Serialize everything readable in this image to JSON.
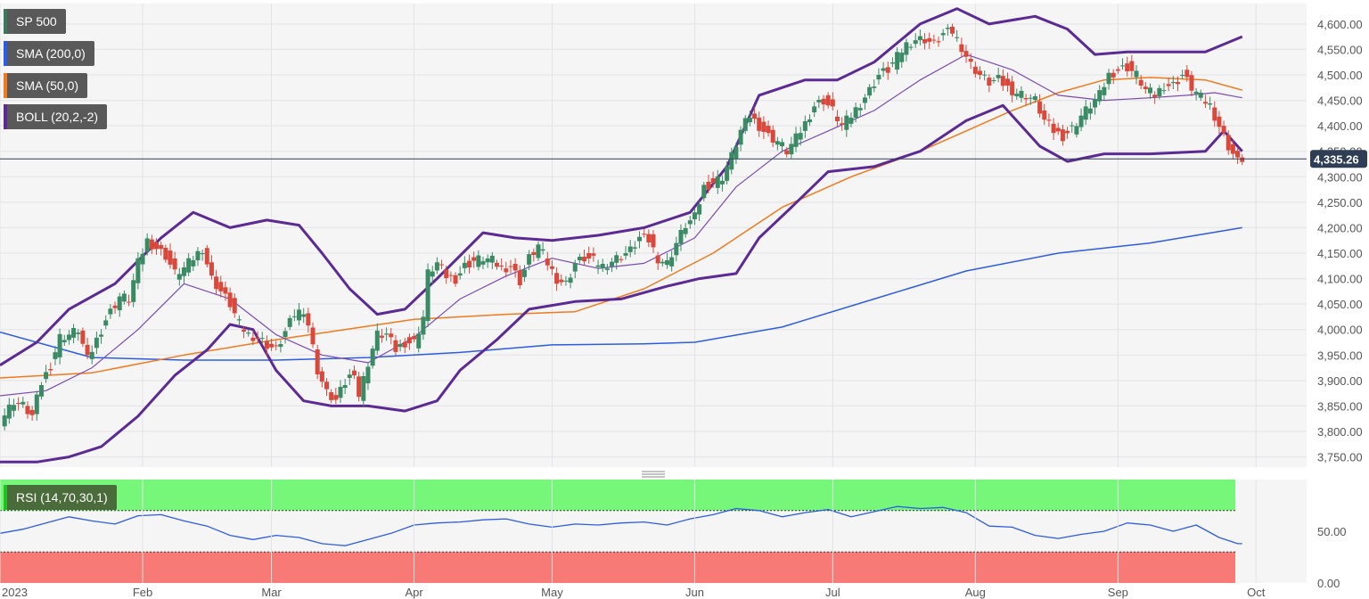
{
  "chart_data": [
    {
      "type": "candlestick",
      "symbol": "SP 500",
      "current_value_label": "4,335.26",
      "ylim": [
        3730,
        4640
      ],
      "y_ticks": [
        {
          "value": 3750,
          "label": "3,750.00"
        },
        {
          "value": 3800,
          "label": "3,800.00"
        },
        {
          "value": 3850,
          "label": "3,850.00"
        },
        {
          "value": 3900,
          "label": "3,900.00"
        },
        {
          "value": 3950,
          "label": "3,950.00"
        },
        {
          "value": 4000,
          "label": "4,000.00"
        },
        {
          "value": 4050,
          "label": "4,050.00"
        },
        {
          "value": 4100,
          "label": "4,100.00"
        },
        {
          "value": 4150,
          "label": "4,150.00"
        },
        {
          "value": 4200,
          "label": "4,200.00"
        },
        {
          "value": 4250,
          "label": "4,250.00"
        },
        {
          "value": 4300,
          "label": "4,300.00"
        },
        {
          "value": 4350,
          "label": "4,350.00"
        },
        {
          "value": 4400,
          "label": "4,400.00"
        },
        {
          "value": 4450,
          "label": "4,450.00"
        },
        {
          "value": 4500,
          "label": "4,500.00"
        },
        {
          "value": 4550,
          "label": "4,550.00"
        },
        {
          "value": 4600,
          "label": "4,600.00"
        }
      ],
      "x_ticks": [
        {
          "day": 0,
          "label": "2023"
        },
        {
          "day": 31,
          "label": "Feb"
        },
        {
          "day": 59,
          "label": "Mar"
        },
        {
          "day": 90,
          "label": "Apr"
        },
        {
          "day": 120,
          "label": "May"
        },
        {
          "day": 151,
          "label": "Jun"
        },
        {
          "day": 181,
          "label": "Jul"
        },
        {
          "day": 212,
          "label": "Aug"
        },
        {
          "day": 243,
          "label": "Sep"
        },
        {
          "day": 273,
          "label": "Oct"
        }
      ],
      "xlim_days": [
        0,
        284
      ],
      "indicators": [
        {
          "name": "SP 500",
          "color": "#3a7a5a"
        },
        {
          "name": "SMA (200,0)",
          "color": "#2b5ce6"
        },
        {
          "name": "SMA (50,0)",
          "color": "#f07a1c"
        },
        {
          "name": "BOLL (20,2,-2)",
          "color": "#5b2a94"
        }
      ],
      "up_color": "#3a8a64",
      "down_color": "#d9483b",
      "close_path": [
        [
          0,
          3820
        ],
        [
          3,
          3860
        ],
        [
          5,
          3850
        ],
        [
          7,
          3830
        ],
        [
          9,
          3895
        ],
        [
          11,
          3930
        ],
        [
          13,
          3985
        ],
        [
          15,
          3990
        ],
        [
          17,
          4000
        ],
        [
          19,
          3940
        ],
        [
          21,
          3980
        ],
        [
          23,
          4020
        ],
        [
          26,
          4065
        ],
        [
          28,
          4060
        ],
        [
          30,
          4130
        ],
        [
          32,
          4175
        ],
        [
          34,
          4160
        ],
        [
          36,
          4145
        ],
        [
          38,
          4110
        ],
        [
          40,
          4120
        ],
        [
          42,
          4140
        ],
        [
          44,
          4160
        ],
        [
          46,
          4100
        ],
        [
          48,
          4075
        ],
        [
          50,
          4050
        ],
        [
          52,
          4010
        ],
        [
          54,
          3990
        ],
        [
          56,
          3985
        ],
        [
          58,
          3970
        ],
        [
          60,
          3960
        ],
        [
          62,
          3995
        ],
        [
          64,
          4030
        ],
        [
          66,
          4040
        ],
        [
          67,
          4010
        ],
        [
          69,
          3920
        ],
        [
          71,
          3875
        ],
        [
          73,
          3860
        ],
        [
          75,
          3895
        ],
        [
          77,
          3920
        ],
        [
          78,
          3870
        ],
        [
          80,
          3935
        ],
        [
          82,
          3990
        ],
        [
          84,
          3990
        ],
        [
          86,
          3960
        ],
        [
          88,
          3975
        ],
        [
          90,
          3975
        ],
        [
          92,
          4025
        ],
        [
          93,
          4110
        ],
        [
          95,
          4130
        ],
        [
          97,
          4105
        ],
        [
          99,
          4100
        ],
        [
          101,
          4125
        ],
        [
          103,
          4135
        ],
        [
          105,
          4140
        ],
        [
          107,
          4135
        ],
        [
          109,
          4120
        ],
        [
          111,
          4125
        ],
        [
          113,
          4095
        ],
        [
          115,
          4140
        ],
        [
          117,
          4165
        ],
        [
          119,
          4130
        ],
        [
          121,
          4100
        ],
        [
          123,
          4090
        ],
        [
          125,
          4130
        ],
        [
          127,
          4140
        ],
        [
          129,
          4135
        ],
        [
          131,
          4125
        ],
        [
          133,
          4135
        ],
        [
          135,
          4145
        ],
        [
          137,
          4155
        ],
        [
          139,
          4180
        ],
        [
          141,
          4175
        ],
        [
          143,
          4140
        ],
        [
          145,
          4130
        ],
        [
          147,
          4170
        ],
        [
          149,
          4205
        ],
        [
          151,
          4220
        ],
        [
          153,
          4280
        ],
        [
          155,
          4290
        ],
        [
          157,
          4300
        ],
        [
          159,
          4340
        ],
        [
          161,
          4390
        ],
        [
          163,
          4420
        ],
        [
          165,
          4400
        ],
        [
          167,
          4380
        ],
        [
          169,
          4370
        ],
        [
          171,
          4350
        ],
        [
          173,
          4375
        ],
        [
          175,
          4405
        ],
        [
          177,
          4440
        ],
        [
          179,
          4450
        ],
        [
          181,
          4430
        ],
        [
          183,
          4400
        ],
        [
          185,
          4420
        ],
        [
          187,
          4445
        ],
        [
          189,
          4470
        ],
        [
          191,
          4500
        ],
        [
          193,
          4510
        ],
        [
          195,
          4535
        ],
        [
          197,
          4560
        ],
        [
          199,
          4570
        ],
        [
          201,
          4570
        ],
        [
          203,
          4560
        ],
        [
          205,
          4580
        ],
        [
          207,
          4585
        ],
        [
          209,
          4555
        ],
        [
          211,
          4520
        ],
        [
          213,
          4500
        ],
        [
          215,
          4485
        ],
        [
          217,
          4490
        ],
        [
          219,
          4475
        ],
        [
          221,
          4465
        ],
        [
          223,
          4460
        ],
        [
          225,
          4450
        ],
        [
          227,
          4410
        ],
        [
          229,
          4390
        ],
        [
          231,
          4380
        ],
        [
          233,
          4395
        ],
        [
          235,
          4420
        ],
        [
          237,
          4440
        ],
        [
          239,
          4460
        ],
        [
          241,
          4500
        ],
        [
          243,
          4510
        ],
        [
          245,
          4515
        ],
        [
          247,
          4500
        ],
        [
          249,
          4470
        ],
        [
          251,
          4460
        ],
        [
          253,
          4480
        ],
        [
          255,
          4480
        ],
        [
          257,
          4500
        ],
        [
          259,
          4475
        ],
        [
          261,
          4455
        ],
        [
          263,
          4440
        ],
        [
          265,
          4400
        ],
        [
          267,
          4360
        ],
        [
          269,
          4330
        ],
        [
          270,
          4335
        ]
      ],
      "sma200_path": [
        [
          0,
          3995
        ],
        [
          20,
          3945
        ],
        [
          40,
          3940
        ],
        [
          60,
          3940
        ],
        [
          80,
          3945
        ],
        [
          100,
          3955
        ],
        [
          120,
          3970
        ],
        [
          140,
          3972
        ],
        [
          151,
          3975
        ],
        [
          170,
          4005
        ],
        [
          190,
          4060
        ],
        [
          210,
          4115
        ],
        [
          230,
          4150
        ],
        [
          250,
          4170
        ],
        [
          270,
          4200
        ]
      ],
      "sma50_path": [
        [
          0,
          3905
        ],
        [
          20,
          3915
        ],
        [
          40,
          3950
        ],
        [
          60,
          3980
        ],
        [
          75,
          4000
        ],
        [
          90,
          4020
        ],
        [
          110,
          4030
        ],
        [
          125,
          4035
        ],
        [
          140,
          4080
        ],
        [
          155,
          4150
        ],
        [
          170,
          4240
        ],
        [
          185,
          4300
        ],
        [
          200,
          4350
        ],
        [
          210,
          4390
        ],
        [
          220,
          4430
        ],
        [
          230,
          4465
        ],
        [
          240,
          4490
        ],
        [
          250,
          4495
        ],
        [
          262,
          4490
        ],
        [
          270,
          4470
        ]
      ],
      "boll_mid_path": [
        [
          0,
          3870
        ],
        [
          10,
          3880
        ],
        [
          20,
          3925
        ],
        [
          30,
          4000
        ],
        [
          40,
          4090
        ],
        [
          50,
          4060
        ],
        [
          60,
          3990
        ],
        [
          70,
          3950
        ],
        [
          80,
          3935
        ],
        [
          90,
          3985
        ],
        [
          100,
          4060
        ],
        [
          110,
          4105
        ],
        [
          120,
          4140
        ],
        [
          130,
          4120
        ],
        [
          140,
          4130
        ],
        [
          151,
          4180
        ],
        [
          160,
          4280
        ],
        [
          170,
          4350
        ],
        [
          180,
          4390
        ],
        [
          190,
          4430
        ],
        [
          200,
          4490
        ],
        [
          210,
          4540
        ],
        [
          220,
          4510
        ],
        [
          230,
          4460
        ],
        [
          240,
          4450
        ],
        [
          250,
          4455
        ],
        [
          258,
          4460
        ],
        [
          264,
          4465
        ],
        [
          270,
          4455
        ]
      ],
      "boll_upper_path": [
        [
          0,
          3930
        ],
        [
          8,
          3975
        ],
        [
          15,
          4040
        ],
        [
          25,
          4090
        ],
        [
          35,
          4180
        ],
        [
          42,
          4230
        ],
        [
          50,
          4200
        ],
        [
          58,
          4215
        ],
        [
          65,
          4205
        ],
        [
          70,
          4150
        ],
        [
          76,
          4080
        ],
        [
          82,
          4030
        ],
        [
          88,
          4040
        ],
        [
          95,
          4100
        ],
        [
          105,
          4190
        ],
        [
          112,
          4180
        ],
        [
          120,
          4175
        ],
        [
          130,
          4185
        ],
        [
          140,
          4200
        ],
        [
          150,
          4230
        ],
        [
          158,
          4320
        ],
        [
          165,
          4460
        ],
        [
          175,
          4490
        ],
        [
          182,
          4490
        ],
        [
          190,
          4525
        ],
        [
          200,
          4600
        ],
        [
          208,
          4630
        ],
        [
          215,
          4600
        ],
        [
          225,
          4615
        ],
        [
          232,
          4590
        ],
        [
          238,
          4540
        ],
        [
          245,
          4545
        ],
        [
          255,
          4545
        ],
        [
          262,
          4545
        ],
        [
          270,
          4575
        ]
      ],
      "boll_lower_path": [
        [
          0,
          3740
        ],
        [
          8,
          3740
        ],
        [
          15,
          3750
        ],
        [
          22,
          3770
        ],
        [
          30,
          3830
        ],
        [
          38,
          3910
        ],
        [
          45,
          3960
        ],
        [
          50,
          4010
        ],
        [
          55,
          4000
        ],
        [
          60,
          3920
        ],
        [
          66,
          3860
        ],
        [
          72,
          3850
        ],
        [
          80,
          3850
        ],
        [
          88,
          3840
        ],
        [
          95,
          3860
        ],
        [
          100,
          3920
        ],
        [
          108,
          3980
        ],
        [
          115,
          4040
        ],
        [
          125,
          4055
        ],
        [
          135,
          4060
        ],
        [
          145,
          4085
        ],
        [
          152,
          4100
        ],
        [
          160,
          4110
        ],
        [
          165,
          4180
        ],
        [
          172,
          4240
        ],
        [
          180,
          4310
        ],
        [
          190,
          4320
        ],
        [
          200,
          4350
        ],
        [
          210,
          4410
        ],
        [
          218,
          4440
        ],
        [
          226,
          4360
        ],
        [
          232,
          4330
        ],
        [
          240,
          4345
        ],
        [
          250,
          4345
        ],
        [
          262,
          4350
        ],
        [
          266,
          4390
        ],
        [
          270,
          4350
        ]
      ]
    },
    {
      "type": "line",
      "indicator": "RSI (14,70,30,1)",
      "ylim": [
        0,
        100
      ],
      "overbought": 70,
      "oversold": 30,
      "y_ticks": [
        {
          "value": 50,
          "label": "50.00"
        },
        {
          "value": 0,
          "label": "0.00"
        }
      ],
      "line_color": "#2b5ce6",
      "path": [
        [
          0,
          48
        ],
        [
          5,
          52
        ],
        [
          10,
          58
        ],
        [
          15,
          64
        ],
        [
          20,
          60
        ],
        [
          25,
          57
        ],
        [
          30,
          65
        ],
        [
          35,
          66
        ],
        [
          40,
          60
        ],
        [
          45,
          55
        ],
        [
          50,
          46
        ],
        [
          55,
          42
        ],
        [
          60,
          46
        ],
        [
          65,
          44
        ],
        [
          70,
          38
        ],
        [
          75,
          36
        ],
        [
          80,
          42
        ],
        [
          85,
          48
        ],
        [
          90,
          56
        ],
        [
          95,
          58
        ],
        [
          100,
          59
        ],
        [
          105,
          61
        ],
        [
          110,
          62
        ],
        [
          115,
          57
        ],
        [
          120,
          54
        ],
        [
          125,
          57
        ],
        [
          130,
          56
        ],
        [
          135,
          58
        ],
        [
          140,
          59
        ],
        [
          145,
          56
        ],
        [
          150,
          62
        ],
        [
          155,
          66
        ],
        [
          160,
          72
        ],
        [
          165,
          70
        ],
        [
          170,
          64
        ],
        [
          175,
          68
        ],
        [
          180,
          71
        ],
        [
          185,
          64
        ],
        [
          190,
          69
        ],
        [
          195,
          74
        ],
        [
          200,
          72
        ],
        [
          205,
          73
        ],
        [
          210,
          68
        ],
        [
          215,
          55
        ],
        [
          220,
          54
        ],
        [
          225,
          46
        ],
        [
          230,
          43
        ],
        [
          235,
          47
        ],
        [
          240,
          50
        ],
        [
          245,
          58
        ],
        [
          250,
          56
        ],
        [
          255,
          50
        ],
        [
          260,
          56
        ],
        [
          265,
          44
        ],
        [
          269,
          38
        ],
        [
          270,
          38
        ]
      ]
    }
  ]
}
